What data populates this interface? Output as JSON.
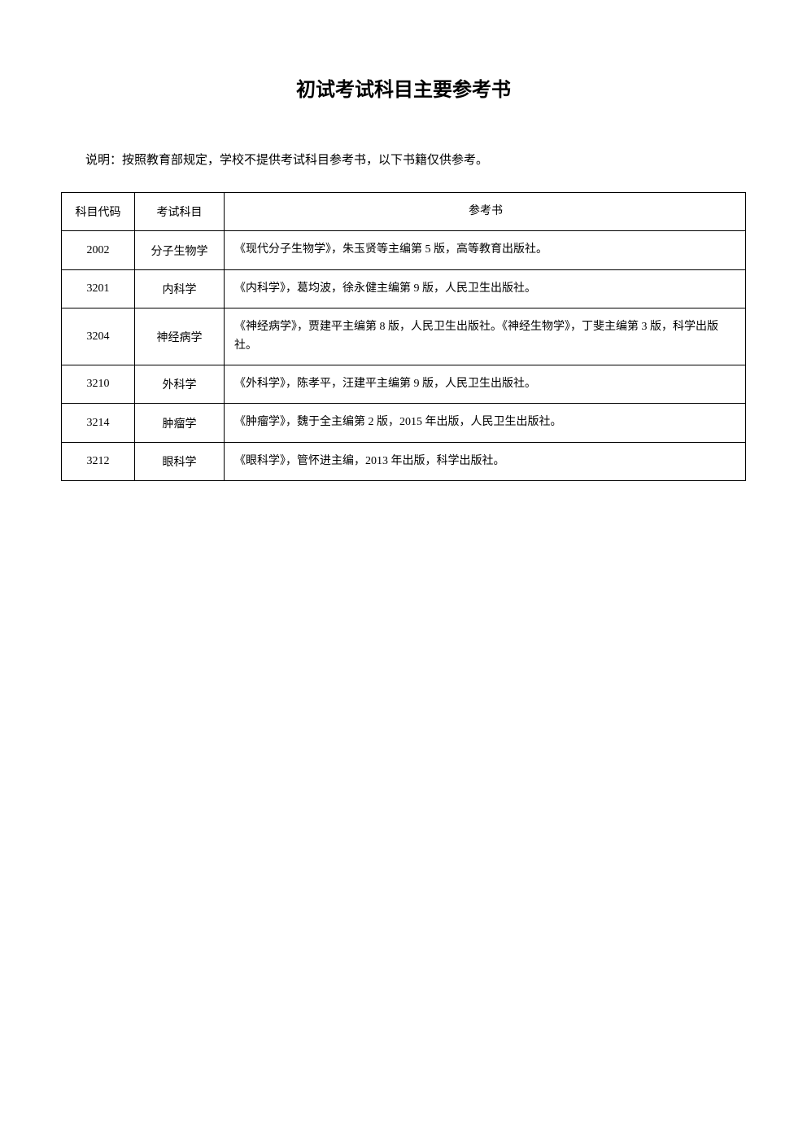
{
  "title": "初试考试科目主要参考书",
  "note": "说明：按照教育部规定，学校不提供考试科目参考书，以下书籍仅供参考。",
  "table": {
    "headers": {
      "code": "科目代码",
      "subject": "考试科目",
      "reference": "参考书"
    },
    "rows": [
      {
        "code": "2002",
        "subject": "分子生物学",
        "reference": "《现代分子生物学》，朱玉贤等主编第 5 版，高等教育出版社。"
      },
      {
        "code": "3201",
        "subject": "内科学",
        "reference": "《内科学》，葛均波，徐永健主编第 9 版，人民卫生出版社。"
      },
      {
        "code": "3204",
        "subject": "神经病学",
        "reference": "《神经病学》，贾建平主编第 8 版，人民卫生出版社。《神经生物学》，丁斐主编第 3 版，科学出版社。"
      },
      {
        "code": "3210",
        "subject": "外科学",
        "reference": "《外科学》，陈孝平，汪建平主编第 9 版，人民卫生出版社。"
      },
      {
        "code": "3214",
        "subject": "肿瘤学",
        "reference": "《肿瘤学》，魏于全主编第 2 版，2015 年出版，人民卫生出版社。"
      },
      {
        "code": "3212",
        "subject": "眼科学",
        "reference": "《眼科学》，管怀进主编，2013 年出版，科学出版社。"
      }
    ]
  }
}
